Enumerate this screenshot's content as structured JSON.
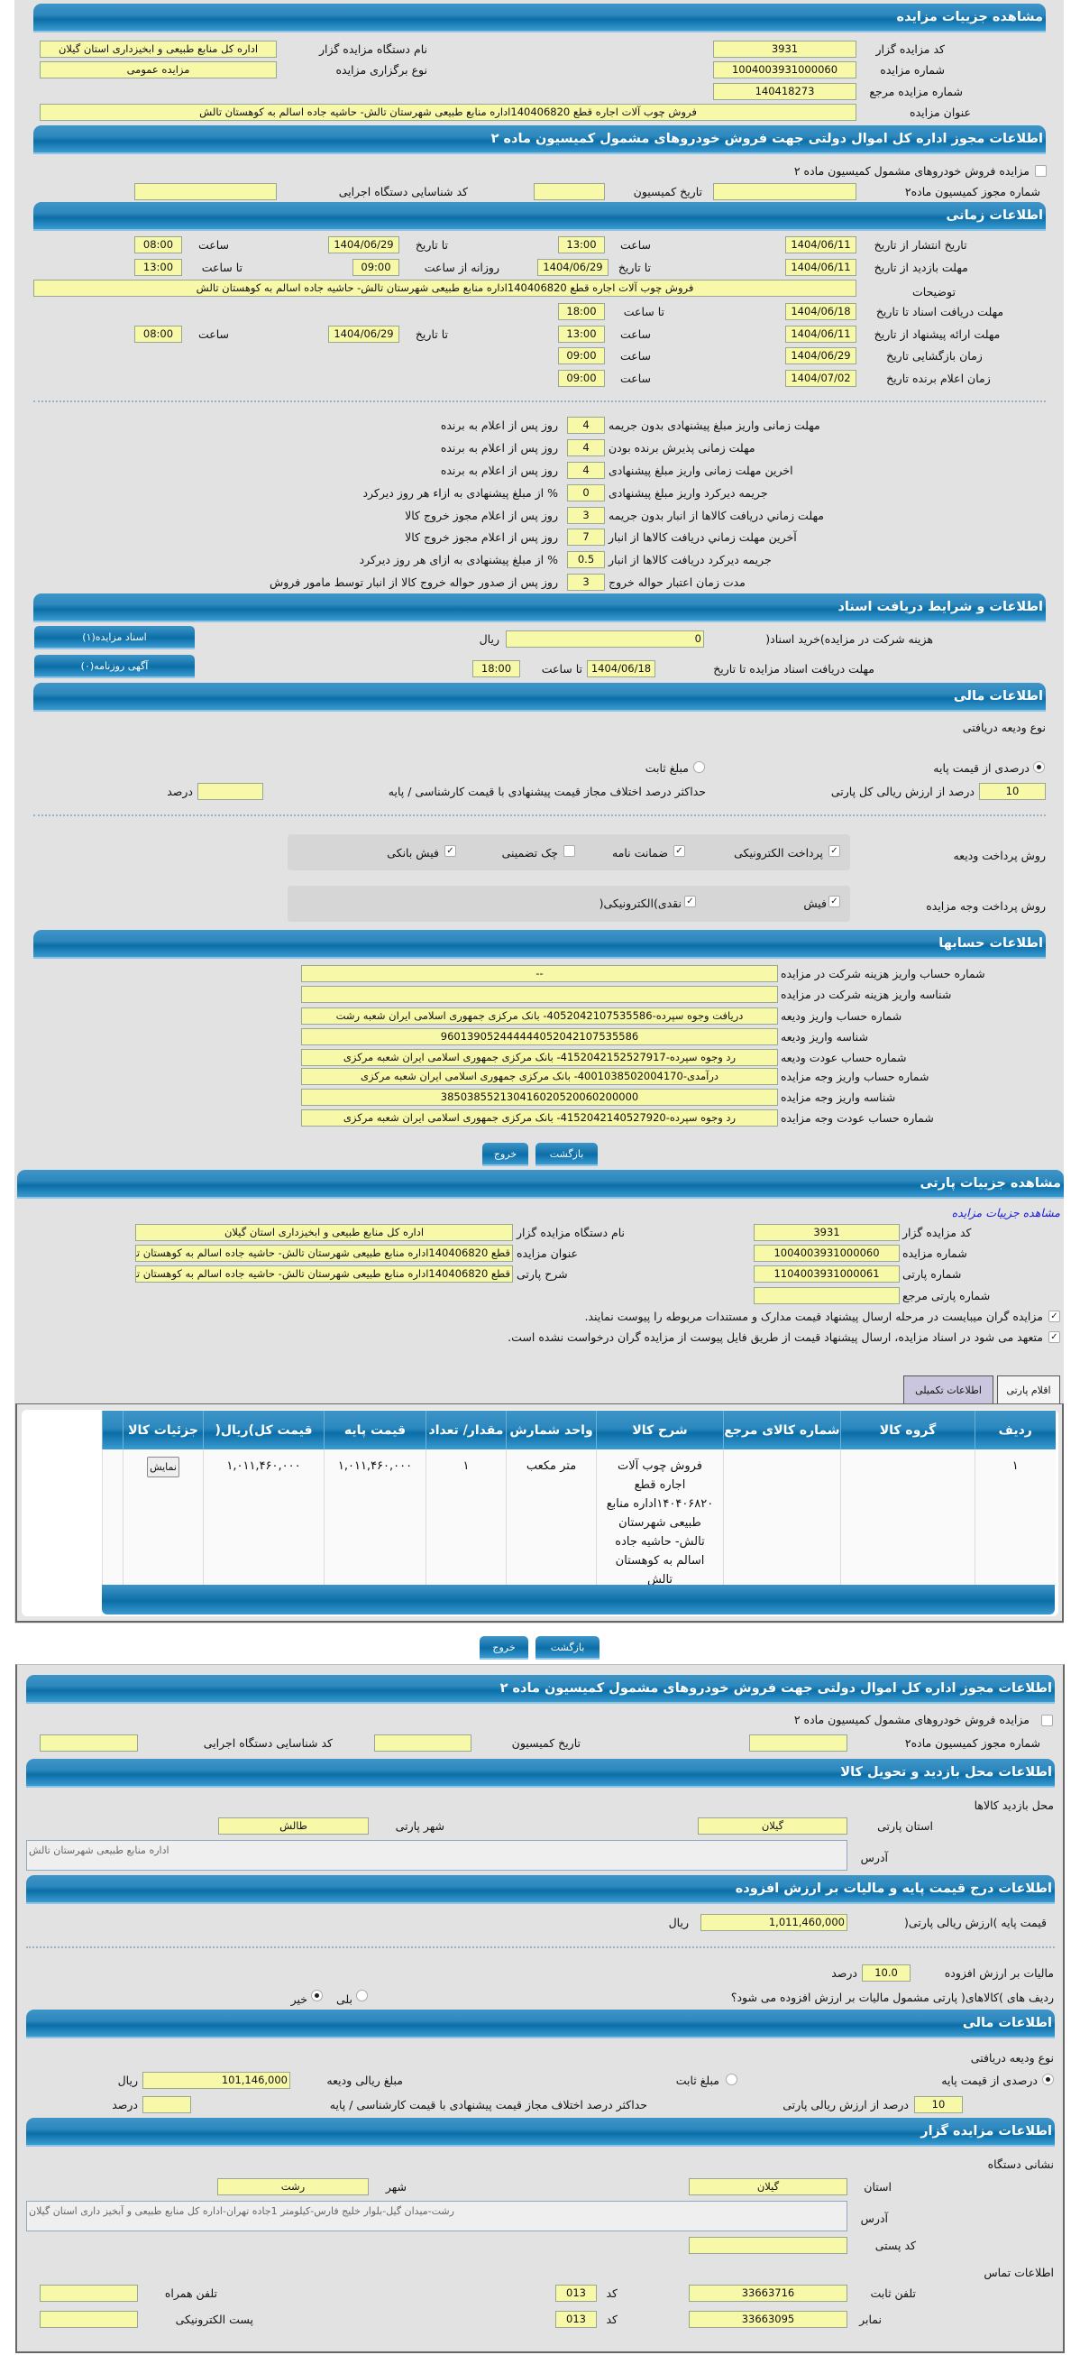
{
  "auction": {
    "title": "مشاهده جزییات مزایده",
    "organizer_code_label": "کد مزایده گزار",
    "organizer_code": "3931",
    "organizer_name_label": "نام دستگاه مزایده گزار",
    "organizer_name": "اداره کل منابع طبیعی و ابخیزداری استان گیلان",
    "auction_number_label": "شماره مزایده",
    "auction_number": "1004003931000060",
    "type_label": "نوع برگزاری مزایده",
    "type": "مزایده عمومی",
    "ref_number_label": "شماره مزایده مرجع",
    "ref_number": "140418273",
    "subject_label": "عنوان مزایده",
    "subject": "فروش چوب آلات اجاره قطع 140406820اداره منابع طبیعی شهرستان تالش- حاشیه جاده اسالم به کوهستان تالش"
  },
  "permit": {
    "title": "اطلاعات مجوز اداره کل اموال دولتی جهت فروش خودروهای مشمول کمیسیون ماده ۲",
    "checkbox_label": "مزایده فروش خودروهای مشمول کمیسیون ماده ۲",
    "checked": false,
    "permit_no_label": "شماره مجوز کمیسیون ماده۲",
    "permit_no": "",
    "commission_date_label": "تاریخ کمیسیون",
    "commission_date": "",
    "exec_code_label": "کد شناسایی دستگاه اجرایی",
    "exec_code": ""
  },
  "timing": {
    "title": "اطلاعات زمانی",
    "publish": {
      "label": "تاریخ انتشار",
      "from_label": "از تاریخ",
      "from_date": "1404/06/11",
      "time_label": "ساعت",
      "from_time": "13:00",
      "to_label": "تا تاریخ",
      "to_date": "1404/06/29",
      "time2_label": "ساعت",
      "to_time": "08:00"
    },
    "visit": {
      "label": "مهلت بازدید",
      "from_label": "از تاریخ",
      "from_date": "1404/06/11",
      "to_label": "تا تاریخ",
      "to_date": "1404/06/29",
      "daily_label": "روزانه از ساعت",
      "from_time": "09:00",
      "to_time_label": "تا ساعت",
      "to_time": "13:00"
    },
    "description_label": "توضیحات",
    "description": "فروش چوب آلات اجاره قطع 140406820اداره منابع طبیعی شهرستان تالش- حاشیه جاده اسالم به کوهستان تالش",
    "docs": {
      "label": "مهلت دریافت اسناد",
      "to_label": "تا تاریخ",
      "to_date": "1404/06/18",
      "time_label": "تا ساعت",
      "to_time": "18:00"
    },
    "offer": {
      "label": "مهلت ارائه پیشنهاد",
      "from_label": "از تاریخ",
      "from_date": "1404/06/11",
      "time_label": "ساعت",
      "from_time": "13:00",
      "to_label": "تا تاریخ",
      "to_date": "1404/06/29",
      "time2_label": "ساعت",
      "to_time": "08:00"
    },
    "opening": {
      "label": "زمان بازگشایی",
      "date_label": "تاریخ",
      "date": "1404/06/29",
      "time_label": "ساعت",
      "time": "09:00"
    },
    "winner": {
      "label": "زمان اعلام برنده",
      "date_label": "تاریخ",
      "date": "1404/07/02",
      "time_label": "ساعت",
      "time": "09:00"
    }
  },
  "rules": [
    {
      "label": "مهلت زمانی واریز مبلغ پیشنهادی بدون جریمه",
      "value": "4",
      "suffix": "روز پس از اعلام به برنده"
    },
    {
      "label": "مهلت زمانی پذیرش برنده بودن",
      "value": "4",
      "suffix": "روز پس از اعلام به برنده"
    },
    {
      "label": "اخرین مهلت زمانی واریز مبلغ پیشنهادی",
      "value": "4",
      "suffix": "روز پس از اعلام به برنده"
    },
    {
      "label": "جریمه دیرکرد واریز مبلغ پیشنهادی",
      "value": "0",
      "suffix": "% از مبلغ پیشنهادی به ازاء هر روز دیرکرد"
    },
    {
      "label": "مهلت زماني دريافت کالاها از انبار بدون جريمه",
      "value": "3",
      "suffix": "روز پس از اعلام مجوز خروج کالا"
    },
    {
      "label": "آخرين مهلت زماني دريافت کالاها از انبار",
      "value": "7",
      "suffix": "روز پس از اعلام مجوز خروج کالا"
    },
    {
      "label": "جریمه دیرکرد دریافت کالاها از انبار",
      "value": "0.5",
      "suffix": "% از مبلغ پیشنهادی به ازای هر روز دیرکرد"
    },
    {
      "label": "مدت زمان اعتبار حواله خروج",
      "value": "3",
      "suffix": "روز پس از صدور حواله خروج کالا از انبار توسط مامور فروش"
    }
  ],
  "documents": {
    "title": "اطلاعات و شرایط دریافت اسناد",
    "fee_label": "هزینه شرکت در مزایده)خرید اسناد(",
    "fee": "0",
    "fee_unit": "ریال",
    "deadline_label": "مهلت دریافت اسناد مزایده تا تاریخ",
    "deadline_date": "1404/06/18",
    "deadline_time_label": "تا ساعت",
    "deadline_time": "18:00",
    "docs_button": "اسناد مزایده(۱)",
    "ads_button": "آگهی روزنامه(۰)"
  },
  "finance": {
    "title": "اطلاعات مالی",
    "deposit_type_label": "نوع ودیعه دریافتی",
    "percent_option": "درصدی از قیمت پایه",
    "fixed_option": "مبلغ ثابت",
    "selected": "percent",
    "percent_value": "10",
    "percent_suffix": "درصد از ارزش ریالی کل پارتی",
    "max_diff_label": "حداکثر درصد اختلاف مجاز قیمت پیشنهادی با قیمت کارشناسی / پایه",
    "max_diff": "",
    "max_diff_unit": "درصد",
    "deposit_methods_label": "روش پرداخت ودیعه",
    "deposit_methods": [
      {
        "label": "پرداخت الکترونیکی",
        "checked": true
      },
      {
        "label": "ضمانت نامه",
        "checked": true
      },
      {
        "label": "چک تضمینی",
        "checked": false
      },
      {
        "label": "فیش بانکی",
        "checked": true
      }
    ],
    "payment_methods_label": "روش پرداخت وجه مزایده",
    "payment_methods": [
      {
        "label": "فیش",
        "checked": true
      },
      {
        "label": "نقدی)الکترونیکی(",
        "checked": true
      }
    ]
  },
  "accounts": {
    "title": "اطلاعات حسابها",
    "rows": [
      {
        "label": "شماره حساب واریز هزینه شرکت در مزایده",
        "value": "--"
      },
      {
        "label": "شناسه واریز هزینه شرکت در مزایده",
        "value": ""
      },
      {
        "label": "شماره حساب واریز ودیعه",
        "value": "دریافت وجوه سپرده-4052042107535586- بانک مرکزی جمهوری اسلامی ایران شعبه رشت"
      },
      {
        "label": "شناسه واریز ودیعه",
        "value": "960139052444444052042107535586"
      },
      {
        "label": "شماره حساب عودت ودیعه",
        "value": "رد وجوه سپرده-4152042152527917- بانک مرکزی جمهوری اسلامی ایران شعبه مرکزی"
      },
      {
        "label": "شماره حساب واریز وجه مزایده",
        "value": "درآمدی-4001038502004170- بانک مرکزی جمهوری اسلامی ایران شعبه مرکزی"
      },
      {
        "label": "شناسه واریز وجه مزایده",
        "value": "385038552130416020520060200000"
      },
      {
        "label": "شماره حساب عودت وجه مزایده",
        "value": "رد وجوه سپرده-4152042140527920- بانک مرکزی جمهوری اسلامی ایران شعبه مرکزی"
      }
    ]
  },
  "buttons": {
    "back": "بازگشت",
    "exit": "خروج"
  },
  "party": {
    "title": "مشاهده جزییات پارتی",
    "auction_link": "مشاهده جزییات مزایده",
    "organizer_code_label": "کد مزایده گزار",
    "organizer_code": "3931",
    "organizer_name_label": "نام دستگاه مزایده گزار",
    "organizer_name": "اداره کل منابع طبیعی و ابخیزداری استان گیلان",
    "auction_number_label": "شماره مزایده",
    "auction_number": "1004003931000060",
    "subject_label": "عنوان مزایده",
    "subject": "قطع 140406820اداره منابع طبیعی شهرستان تالش- حاشیه جاده اسالم به کوهستان تالش",
    "party_number_label": "شماره پارتی",
    "party_number": "1104003931000061",
    "party_desc_label": "شرح پارتی",
    "party_desc": "قطع 140406820اداره منابع طبیعی شهرستان تالش- حاشیه جاده اسالم به کوهستان تالش",
    "ref_label": "شماره پارتی مرجع",
    "ref": "",
    "notice1": "مزایده گران میبایست در مرحله ارسال پیشنهاد قیمت مدارک و مستندات مربوطه را پیوست نمایند.",
    "notice2": "متعهد می شود در اسناد مزایده، ارسال پیشنهاد قیمت از طریق فایل پیوست از مزایده گران درخواست نشده است.",
    "tabs": [
      {
        "label": "اقلام پارتی",
        "active": true
      },
      {
        "label": "اطلاعات تکمیلی",
        "active": false
      }
    ]
  },
  "items_table": {
    "columns": [
      "ردیف",
      "گروه کالا",
      "شماره کالای مرجع",
      "شرح کالا",
      "واحد شمارش",
      "مقدار/ تعداد",
      "قیمت پایه",
      "قیمت کل)ریال(",
      "جزئیات کالا"
    ],
    "rows": [
      {
        "row": "۱",
        "group": "",
        "ref": "",
        "desc": "فروش چوب آلات اجاره قطع ۱۴۰۴۰۶۸۲۰اداره منابع طبیعی شهرستان تالش- حاشیه جاده اسالم به کوهستان تالش",
        "unit": "متر مکعب",
        "qty": "۱",
        "base_price": "۱,۰۱۱,۴۶۰,۰۰۰",
        "total_price": "۱,۰۱۱,۴۶۰,۰۰۰",
        "details_button": "نمایش"
      }
    ]
  },
  "permit2": {
    "title": "اطلاعات مجوز اداره کل اموال دولتی جهت فروش خودروهای مشمول کمیسیون ماده ۲",
    "checkbox_label": "مزایده فروش خودروهای مشمول کمیسیون ماده ۲",
    "permit_no_label": "شماره مجوز کمیسیون ماده۲",
    "commission_date_label": "تاریخ کمیسیون",
    "exec_code_label": "کد شناسایی دستگاه اجرایی"
  },
  "visit_location": {
    "title": "اطلاعات محل بازدید و تحویل کالا",
    "subtitle": "محل بازدید کالاها",
    "province_label": "استان پارتی",
    "province": "گیلان",
    "city_label": "شهر پارتی",
    "city": "طالش",
    "address_label": "آدرس",
    "address": "اداره منابع طبیعی شهرستان تالش"
  },
  "pricing": {
    "title": "اطلاعات درج قیمت پایه و مالیات بر ارزش افزوده",
    "base_label": "قیمت پایه )ارزش ریالی پارتی(",
    "base_value": "1,011,460,000",
    "base_unit": "ریال",
    "vat_label": "مالیات بر ارزش افزوده",
    "vat_value": "10.0",
    "vat_unit": "درصد",
    "vat_question": "ردیف های )کالاهای( پارتی مشمول مالیات بر ارزش افزوده می شود؟",
    "yes": "بلی",
    "no": "خیر",
    "selected": "no"
  },
  "finance2": {
    "title": "اطلاعات مالی",
    "deposit_type_label": "نوع ودیعه دریافتی",
    "percent_option": "درصدی از قیمت پایه",
    "fixed_option": "مبلغ ثابت",
    "deposit_amount_label": "مبلغ ریالی ودیعه",
    "deposit_amount": "101,146,000",
    "deposit_unit": "ریال",
    "percent_value": "10",
    "percent_suffix": "درصد از ارزش ریالی پارتی",
    "max_diff_label": "حداکثر درصد اختلاف مجاز قیمت پیشنهادی با قیمت کارشناسی / پایه",
    "max_diff": "",
    "max_diff_unit": "درصد"
  },
  "organizer": {
    "title": "اطلاعات مزایده گزار",
    "address_section": "نشانی دستگاه",
    "province_label": "استان",
    "province": "گیلان",
    "city_label": "شهر",
    "city": "رشت",
    "address_label": "آدرس",
    "address": "رشت-میدان گیل-بلوار خلیج فارس-کیلومتر 1جاده تهران-اداره کل منابع طبیعی و آبخیز داری استان گیلان",
    "postal_label": "کد پستی",
    "postal": "",
    "contact_section": "اطلاعات تماس",
    "phone_label": "تلفن ثابت",
    "phone": "33663716",
    "code_label": "کد",
    "phone_code": "013",
    "mobile_label": "تلفن همراه",
    "mobile": "",
    "fax_label": "نمابر",
    "fax": "33663095",
    "fax_code": "013",
    "email_label": "پست الکترونیکی",
    "email": ""
  },
  "colors": {
    "header_blue": "#0c6ea7",
    "field_yellow": "#f8f8a9",
    "panel_gray": "#e2e2e2",
    "link_blue": "#1a1adb",
    "tab_active": "#c9c6de"
  }
}
